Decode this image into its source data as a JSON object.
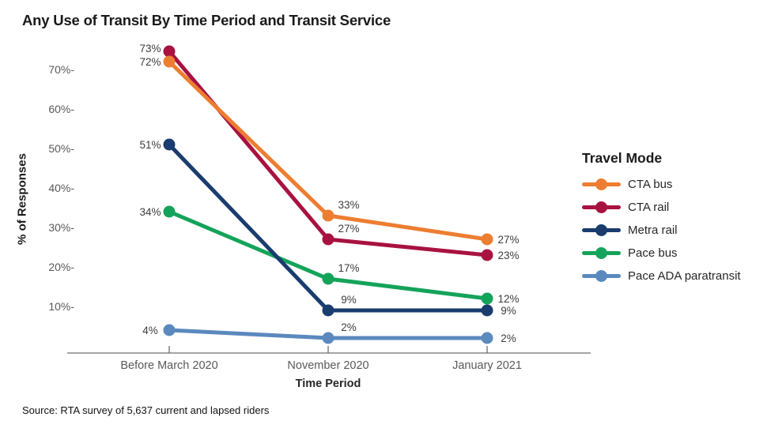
{
  "page": {
    "title": "Any Use of Transit By Time Period and Transit Service",
    "source_note": "Source: RTA survey of 5,637 current and lapsed riders"
  },
  "chart_data": {
    "type": "line",
    "title": "Any Use of Transit By Time Period and Transit Service",
    "xlabel": "Time Period",
    "ylabel": "% of Responses",
    "categories": [
      "Before March 2020",
      "November 2020",
      "January 2021"
    ],
    "series": [
      {
        "name": "CTA bus",
        "color": "#ED7D31",
        "values": [
          72,
          33,
          27
        ],
        "labels": [
          "72%",
          "33%",
          "27%"
        ],
        "z": 2,
        "point_dy": [
          0,
          0,
          0
        ],
        "label_dy": [
          0,
          0,
          0
        ]
      },
      {
        "name": "CTA rail",
        "color": "#A81240",
        "values": [
          73,
          27,
          23
        ],
        "labels": [
          "73%",
          "27%",
          "23%"
        ],
        "z": 1,
        "point_dy": [
          -8,
          0,
          0
        ],
        "label_dy": [
          -4,
          0,
          0
        ]
      },
      {
        "name": "Metra rail",
        "color": "#1A3C6E",
        "values": [
          51,
          9,
          9
        ],
        "labels": [
          "51%",
          "9%",
          "9%"
        ],
        "z": 4,
        "point_dy": [
          0,
          0,
          0
        ],
        "label_dy": [
          0,
          0,
          0
        ]
      },
      {
        "name": "Pace bus",
        "color": "#14A35A",
        "values": [
          34,
          17,
          12
        ],
        "labels": [
          "34%",
          "17%",
          "12%"
        ],
        "z": 3,
        "point_dy": [
          0,
          0,
          0
        ],
        "label_dy": [
          0,
          0,
          0
        ]
      },
      {
        "name": "Pace ADA paratransit",
        "color": "#5B89BE",
        "values": [
          4,
          2,
          2
        ],
        "labels": [
          "4%",
          "2%",
          "2%"
        ],
        "z": 5,
        "point_dy": [
          0,
          0,
          0
        ],
        "label_dy": [
          0,
          0,
          0
        ]
      }
    ],
    "y_ticks": [
      {
        "value": 70,
        "label": "70%-"
      },
      {
        "value": 60,
        "label": "60%-"
      },
      {
        "value": 50,
        "label": "50%-"
      },
      {
        "value": 40,
        "label": "40%-"
      },
      {
        "value": 30,
        "label": "30%-"
      },
      {
        "value": 20,
        "label": "20%-"
      },
      {
        "value": 10,
        "label": "10%-"
      }
    ],
    "ylim": [
      0,
      76
    ],
    "grid": false,
    "legend": {
      "title": "Travel Mode",
      "position": "right"
    }
  },
  "style": {
    "background": "#FFFFFF",
    "axis_color": "#6E6E6E",
    "tick_label_color": "#595959",
    "value_label_color": "#3D3D3D",
    "title_color": "#1A1A1A"
  }
}
